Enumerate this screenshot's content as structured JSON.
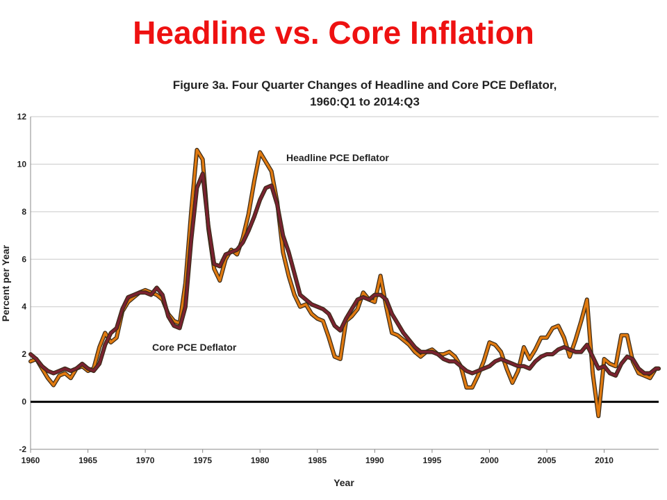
{
  "slide_title": "Headline vs. Core Inflation",
  "chart_data": {
    "type": "line",
    "title_line1": "Figure 3a. Four Quarter Changes of Headline and Core PCE Deflator,",
    "title_line2": "1960:Q1 to 2014:Q3",
    "xlabel": "Year",
    "ylabel": "Percent per Year",
    "xlim": [
      1960,
      2014.75
    ],
    "ylim": [
      -2,
      12
    ],
    "x_ticks": [
      1960,
      1965,
      1970,
      1975,
      1980,
      1985,
      1990,
      1995,
      2000,
      2005,
      2010
    ],
    "y_ticks": [
      -2,
      0,
      2,
      4,
      6,
      8,
      10,
      12
    ],
    "grid": "horizontal",
    "legend": "inline labels",
    "annotations": {
      "headline": "Headline PCE Deflator",
      "core": "Core PCE Deflator"
    },
    "series": [
      {
        "name": "Headline PCE Deflator",
        "color": "#e07a10",
        "points": [
          [
            1960.0,
            1.7
          ],
          [
            1960.5,
            1.8
          ],
          [
            1961.0,
            1.4
          ],
          [
            1961.5,
            1.0
          ],
          [
            1962.0,
            0.7
          ],
          [
            1962.5,
            1.1
          ],
          [
            1963.0,
            1.2
          ],
          [
            1963.5,
            1.0
          ],
          [
            1964.0,
            1.4
          ],
          [
            1964.5,
            1.5
          ],
          [
            1965.0,
            1.3
          ],
          [
            1965.5,
            1.4
          ],
          [
            1966.0,
            2.3
          ],
          [
            1966.5,
            2.9
          ],
          [
            1967.0,
            2.5
          ],
          [
            1967.5,
            2.7
          ],
          [
            1968.0,
            3.8
          ],
          [
            1968.5,
            4.2
          ],
          [
            1969.0,
            4.4
          ],
          [
            1969.5,
            4.6
          ],
          [
            1970.0,
            4.7
          ],
          [
            1970.5,
            4.6
          ],
          [
            1971.0,
            4.5
          ],
          [
            1971.5,
            4.3
          ],
          [
            1972.0,
            3.7
          ],
          [
            1972.5,
            3.4
          ],
          [
            1973.0,
            3.3
          ],
          [
            1973.5,
            5.0
          ],
          [
            1974.0,
            8.0
          ],
          [
            1974.5,
            10.6
          ],
          [
            1975.0,
            10.2
          ],
          [
            1975.5,
            7.3
          ],
          [
            1976.0,
            5.6
          ],
          [
            1976.5,
            5.1
          ],
          [
            1977.0,
            6.0
          ],
          [
            1977.5,
            6.4
          ],
          [
            1978.0,
            6.2
          ],
          [
            1978.5,
            6.9
          ],
          [
            1979.0,
            7.9
          ],
          [
            1979.5,
            9.3
          ],
          [
            1980.0,
            10.5
          ],
          [
            1980.5,
            10.1
          ],
          [
            1981.0,
            9.7
          ],
          [
            1981.5,
            8.4
          ],
          [
            1982.0,
            6.3
          ],
          [
            1982.5,
            5.3
          ],
          [
            1983.0,
            4.5
          ],
          [
            1983.5,
            4.0
          ],
          [
            1984.0,
            4.1
          ],
          [
            1984.5,
            3.7
          ],
          [
            1985.0,
            3.5
          ],
          [
            1985.5,
            3.4
          ],
          [
            1986.0,
            2.7
          ],
          [
            1986.5,
            1.9
          ],
          [
            1987.0,
            1.8
          ],
          [
            1987.5,
            3.4
          ],
          [
            1988.0,
            3.6
          ],
          [
            1988.5,
            3.9
          ],
          [
            1989.0,
            4.6
          ],
          [
            1989.5,
            4.3
          ],
          [
            1990.0,
            4.2
          ],
          [
            1990.5,
            5.3
          ],
          [
            1991.0,
            4.0
          ],
          [
            1991.5,
            2.9
          ],
          [
            1992.0,
            2.8
          ],
          [
            1992.5,
            2.6
          ],
          [
            1993.0,
            2.4
          ],
          [
            1993.5,
            2.1
          ],
          [
            1994.0,
            1.9
          ],
          [
            1994.5,
            2.1
          ],
          [
            1995.0,
            2.2
          ],
          [
            1995.5,
            2.0
          ],
          [
            1996.0,
            2.0
          ],
          [
            1996.5,
            2.1
          ],
          [
            1997.0,
            1.9
          ],
          [
            1997.5,
            1.5
          ],
          [
            1998.0,
            0.6
          ],
          [
            1998.5,
            0.6
          ],
          [
            1999.0,
            1.1
          ],
          [
            1999.5,
            1.7
          ],
          [
            2000.0,
            2.5
          ],
          [
            2000.5,
            2.4
          ],
          [
            2001.0,
            2.1
          ],
          [
            2001.5,
            1.4
          ],
          [
            2002.0,
            0.8
          ],
          [
            2002.5,
            1.3
          ],
          [
            2003.0,
            2.3
          ],
          [
            2003.5,
            1.8
          ],
          [
            2004.0,
            2.2
          ],
          [
            2004.5,
            2.7
          ],
          [
            2005.0,
            2.7
          ],
          [
            2005.5,
            3.1
          ],
          [
            2006.0,
            3.2
          ],
          [
            2006.5,
            2.7
          ],
          [
            2007.0,
            1.9
          ],
          [
            2007.5,
            2.6
          ],
          [
            2008.0,
            3.4
          ],
          [
            2008.5,
            4.3
          ],
          [
            2009.0,
            1.2
          ],
          [
            2009.5,
            -0.6
          ],
          [
            2010.0,
            1.8
          ],
          [
            2010.5,
            1.6
          ],
          [
            2011.0,
            1.5
          ],
          [
            2011.5,
            2.8
          ],
          [
            2012.0,
            2.8
          ],
          [
            2012.5,
            1.7
          ],
          [
            2013.0,
            1.2
          ],
          [
            2013.5,
            1.1
          ],
          [
            2014.0,
            1.0
          ],
          [
            2014.5,
            1.4
          ],
          [
            2014.75,
            1.4
          ]
        ]
      },
      {
        "name": "Core PCE Deflator",
        "color": "#7a2230",
        "points": [
          [
            1960.0,
            2.0
          ],
          [
            1960.5,
            1.8
          ],
          [
            1961.0,
            1.5
          ],
          [
            1961.5,
            1.3
          ],
          [
            1962.0,
            1.2
          ],
          [
            1962.5,
            1.3
          ],
          [
            1963.0,
            1.4
          ],
          [
            1963.5,
            1.3
          ],
          [
            1964.0,
            1.4
          ],
          [
            1964.5,
            1.6
          ],
          [
            1965.0,
            1.4
          ],
          [
            1965.5,
            1.3
          ],
          [
            1966.0,
            1.6
          ],
          [
            1966.5,
            2.4
          ],
          [
            1967.0,
            2.9
          ],
          [
            1967.5,
            3.1
          ],
          [
            1968.0,
            3.9
          ],
          [
            1968.5,
            4.4
          ],
          [
            1969.0,
            4.5
          ],
          [
            1969.5,
            4.6
          ],
          [
            1970.0,
            4.6
          ],
          [
            1970.5,
            4.5
          ],
          [
            1971.0,
            4.8
          ],
          [
            1971.5,
            4.5
          ],
          [
            1972.0,
            3.6
          ],
          [
            1972.5,
            3.2
          ],
          [
            1973.0,
            3.1
          ],
          [
            1973.5,
            4.0
          ],
          [
            1974.0,
            6.8
          ],
          [
            1974.5,
            9.0
          ],
          [
            1975.0,
            9.6
          ],
          [
            1975.5,
            7.4
          ],
          [
            1976.0,
            5.8
          ],
          [
            1976.5,
            5.7
          ],
          [
            1977.0,
            6.2
          ],
          [
            1977.5,
            6.3
          ],
          [
            1978.0,
            6.4
          ],
          [
            1978.5,
            6.7
          ],
          [
            1979.0,
            7.2
          ],
          [
            1979.5,
            7.8
          ],
          [
            1980.0,
            8.5
          ],
          [
            1980.5,
            9.0
          ],
          [
            1981.0,
            9.1
          ],
          [
            1981.5,
            8.3
          ],
          [
            1982.0,
            7.0
          ],
          [
            1982.5,
            6.3
          ],
          [
            1983.0,
            5.4
          ],
          [
            1983.5,
            4.5
          ],
          [
            1984.0,
            4.3
          ],
          [
            1984.5,
            4.1
          ],
          [
            1985.0,
            4.0
          ],
          [
            1985.5,
            3.9
          ],
          [
            1986.0,
            3.7
          ],
          [
            1986.5,
            3.2
          ],
          [
            1987.0,
            3.0
          ],
          [
            1987.5,
            3.5
          ],
          [
            1988.0,
            3.9
          ],
          [
            1988.5,
            4.3
          ],
          [
            1989.0,
            4.4
          ],
          [
            1989.5,
            4.3
          ],
          [
            1990.0,
            4.5
          ],
          [
            1990.5,
            4.5
          ],
          [
            1991.0,
            4.3
          ],
          [
            1991.5,
            3.7
          ],
          [
            1992.0,
            3.3
          ],
          [
            1992.5,
            2.9
          ],
          [
            1993.0,
            2.6
          ],
          [
            1993.5,
            2.3
          ],
          [
            1994.0,
            2.1
          ],
          [
            1994.5,
            2.1
          ],
          [
            1995.0,
            2.1
          ],
          [
            1995.5,
            2.0
          ],
          [
            1996.0,
            1.8
          ],
          [
            1996.5,
            1.7
          ],
          [
            1997.0,
            1.7
          ],
          [
            1997.5,
            1.5
          ],
          [
            1998.0,
            1.3
          ],
          [
            1998.5,
            1.2
          ],
          [
            1999.0,
            1.3
          ],
          [
            1999.5,
            1.4
          ],
          [
            2000.0,
            1.5
          ],
          [
            2000.5,
            1.7
          ],
          [
            2001.0,
            1.8
          ],
          [
            2001.5,
            1.7
          ],
          [
            2002.0,
            1.6
          ],
          [
            2002.5,
            1.5
          ],
          [
            2003.0,
            1.5
          ],
          [
            2003.5,
            1.4
          ],
          [
            2004.0,
            1.7
          ],
          [
            2004.5,
            1.9
          ],
          [
            2005.0,
            2.0
          ],
          [
            2005.5,
            2.0
          ],
          [
            2006.0,
            2.2
          ],
          [
            2006.5,
            2.3
          ],
          [
            2007.0,
            2.2
          ],
          [
            2007.5,
            2.1
          ],
          [
            2008.0,
            2.1
          ],
          [
            2008.5,
            2.4
          ],
          [
            2009.0,
            1.9
          ],
          [
            2009.5,
            1.4
          ],
          [
            2010.0,
            1.5
          ],
          [
            2010.5,
            1.2
          ],
          [
            2011.0,
            1.1
          ],
          [
            2011.5,
            1.6
          ],
          [
            2012.0,
            1.9
          ],
          [
            2012.5,
            1.8
          ],
          [
            2013.0,
            1.4
          ],
          [
            2013.5,
            1.2
          ],
          [
            2014.0,
            1.2
          ],
          [
            2014.5,
            1.4
          ],
          [
            2014.75,
            1.4
          ]
        ]
      }
    ]
  }
}
